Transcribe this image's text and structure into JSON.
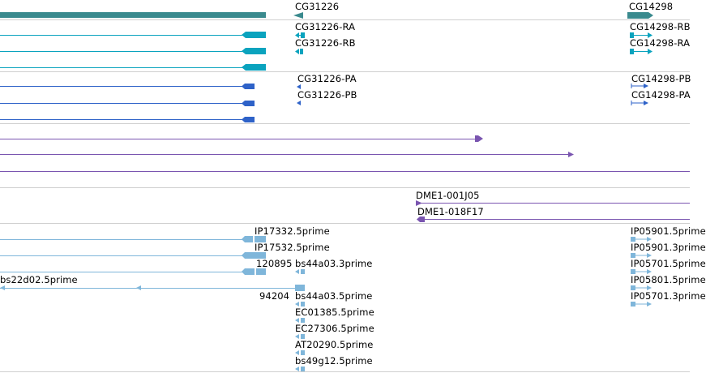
{
  "colors": {
    "gene": "#3a8a8e",
    "rna": "#0aa3be",
    "protein": "#2e62c8",
    "purple": "#7a55b0",
    "est": "#7fb6da",
    "divider": "#cfcfcf"
  },
  "genes": {
    "cg31226": "CG31226",
    "cg14298": "CG14298"
  },
  "transcripts": {
    "cg31226_ra": "CG31226-RA",
    "cg31226_rb": "CG31226-RB",
    "cg14298_rb": "CG14298-RB",
    "cg14298_ra": "CG14298-RA"
  },
  "proteins": {
    "cg31226_pa": "CG31226-PA",
    "cg31226_pb": "CG31226-PB",
    "cg14298_pb": "CG14298-PB",
    "cg14298_pa": "CG14298-PA"
  },
  "clones": {
    "dme1_001j05": "DME1-001J05",
    "dme1_018f17": "DME1-018F17"
  },
  "ests": {
    "ip17332": "IP17332.5prime",
    "ip17532": "IP17532.5prime",
    "e120895": "120895",
    "bs44a03_3": "bs44a03.3prime",
    "bs22d02": "bs22d02.5prime",
    "e94204": "94204",
    "bs44a03_5": "bs44a03.5prime",
    "ec01385": "EC01385.5prime",
    "ec27306": "EC27306.5prime",
    "at20290": "AT20290.5prime",
    "bs49g12": "bs49g12.5prime",
    "ip05901_5": "IP05901.5prime",
    "ip05901_3": "IP05901.3prime",
    "ip05701_5": "IP05701.5prime",
    "ip05801": "IP05801.5prime",
    "ip05701_3": "IP05701.3prime"
  }
}
